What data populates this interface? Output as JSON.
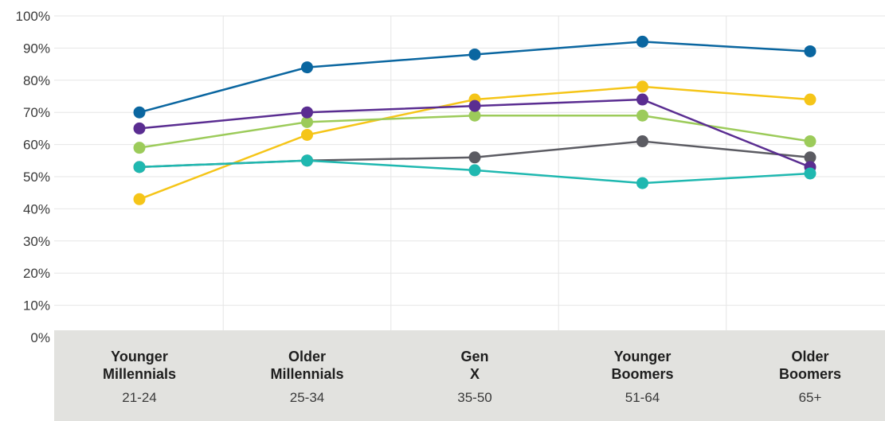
{
  "chart_data": {
    "type": "line",
    "ylim": [
      0,
      100
    ],
    "y_ticks": [
      "0%",
      "10%",
      "20%",
      "30%",
      "40%",
      "50%",
      "60%",
      "70%",
      "80%",
      "90%",
      "100%"
    ],
    "grid": true,
    "categories": [
      {
        "title_lines": [
          "Younger",
          "Millennials"
        ],
        "sub": "21-24"
      },
      {
        "title_lines": [
          "Older",
          "Millennials"
        ],
        "sub": "25-34"
      },
      {
        "title_lines": [
          "Gen",
          "X"
        ],
        "sub": "35-50"
      },
      {
        "title_lines": [
          "Younger",
          "Boomers"
        ],
        "sub": "51-64"
      },
      {
        "title_lines": [
          "Older",
          "Boomers"
        ],
        "sub": "65+"
      }
    ],
    "series": [
      {
        "color": "#f5c518",
        "values": [
          43,
          63,
          74,
          78,
          74
        ]
      },
      {
        "color": "#5b5b62",
        "values": [
          53,
          55,
          56,
          61,
          56
        ]
      },
      {
        "color": "#9ccb5a",
        "values": [
          59,
          67,
          69,
          69,
          61
        ]
      },
      {
        "color": "#5a2d91",
        "values": [
          65,
          70,
          72,
          74,
          53
        ]
      },
      {
        "color": "#1fb8b0",
        "values": [
          53,
          55,
          52,
          48,
          51
        ]
      },
      {
        "color": "#0a66a0",
        "values": [
          70,
          84,
          88,
          92,
          89
        ]
      }
    ]
  }
}
